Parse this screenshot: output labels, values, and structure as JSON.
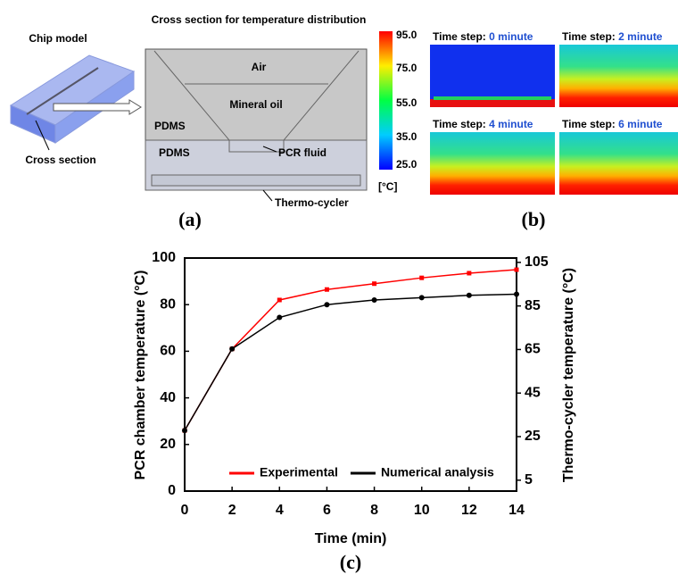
{
  "panel_a": {
    "chip_title": "Chip model",
    "chip_callout": "Cross section",
    "section_title": "Cross section for temperature distribution",
    "layers": [
      "Air",
      "Mineral oil",
      "PDMS",
      "PDMS",
      "PCR fluid",
      "Thermo-cycler"
    ],
    "caption": "(a)"
  },
  "panel_b": {
    "colorbar_labels": [
      "95.0",
      "75.0",
      "55.0",
      "35.0",
      "25.0"
    ],
    "colorbar_unit": "[°C]",
    "step_prefix": "Time step:",
    "steps": [
      "0 minute",
      "2 minute",
      "4 minute",
      "6 minute"
    ],
    "caption": "(b)"
  },
  "chart_data": {
    "type": "line",
    "caption": "(c)",
    "x_label": "Time (min)",
    "y_label": "PCR chamber temperature (°C)",
    "y2_label": "Thermo-cycler temperature (°C)",
    "x": [
      0,
      2,
      4,
      6,
      8,
      10,
      12,
      14
    ],
    "xlim": [
      0,
      14
    ],
    "xticks": [
      0,
      2,
      4,
      6,
      8,
      10,
      12,
      14
    ],
    "ylim": [
      0,
      100
    ],
    "yticks": [
      0,
      20,
      40,
      60,
      80,
      100
    ],
    "y2lim": [
      0,
      107
    ],
    "y2ticks": [
      5,
      25,
      45,
      65,
      85,
      105
    ],
    "legend": "bottom",
    "series": [
      {
        "name": "Experimental",
        "color": "#ff0000",
        "marker": "square",
        "values": [
          26,
          61,
          82,
          86.5,
          89,
          91.5,
          93.5,
          95
        ]
      },
      {
        "name": "Numerical analysis",
        "color": "#000000",
        "marker": "circle",
        "values": [
          26,
          61,
          74.5,
          80,
          82,
          83,
          84,
          84.5
        ]
      }
    ]
  }
}
